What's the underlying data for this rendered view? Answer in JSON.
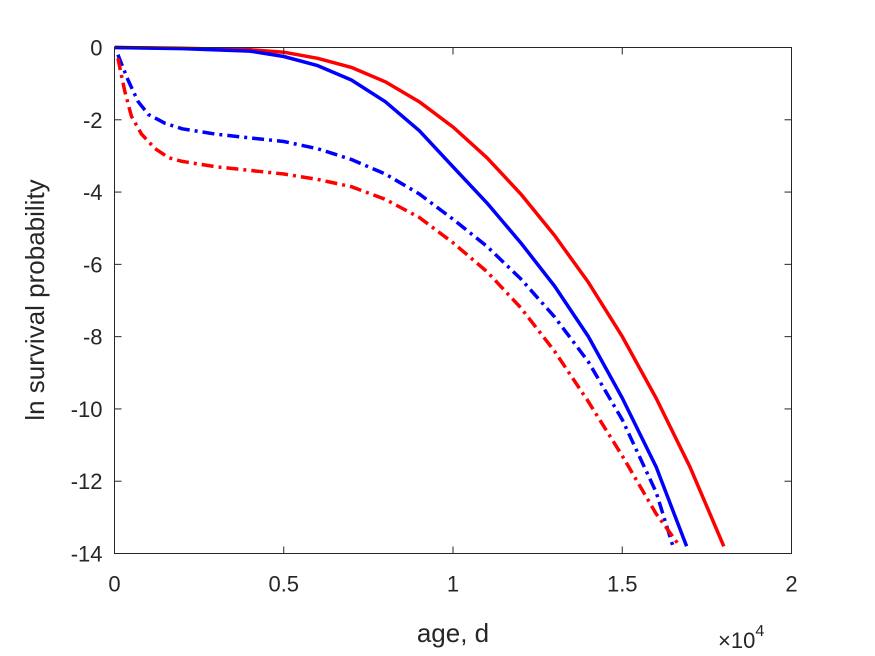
{
  "chart_data": {
    "type": "line",
    "title": "",
    "xlabel": "age, d",
    "ylabel": "ln survival probability",
    "x_multiplier_label": "×10",
    "x_multiplier_exponent": "4",
    "xlim": [
      0,
      20000
    ],
    "ylim": [
      -14,
      0
    ],
    "x_ticks": [
      0,
      5000,
      10000,
      15000,
      20000
    ],
    "x_tick_labels": [
      "0",
      "0.5",
      "1",
      "1.5",
      "2"
    ],
    "y_ticks": [
      0,
      -2,
      -4,
      -6,
      -8,
      -10,
      -12,
      -14
    ],
    "y_tick_labels": [
      "0",
      "-2",
      "-4",
      "-6",
      "-8",
      "-10",
      "-12",
      "-14"
    ],
    "grid": false,
    "legend": "none",
    "series": [
      {
        "color": "#ff0000",
        "style": "solid",
        "x": [
          0,
          2000,
          4000,
          5000,
          6000,
          7000,
          8000,
          9000,
          10000,
          11000,
          12000,
          13000,
          14000,
          15000,
          16000,
          17000,
          18000
        ],
        "y": [
          0,
          -0.02,
          -0.06,
          -0.13,
          -0.3,
          -0.55,
          -0.95,
          -1.5,
          -2.2,
          -3.05,
          -4.05,
          -5.2,
          -6.5,
          -8.0,
          -9.7,
          -11.6,
          -13.8
        ]
      },
      {
        "color": "#0000ff",
        "style": "solid",
        "x": [
          0,
          2000,
          4000,
          5000,
          6000,
          7000,
          8000,
          9000,
          10000,
          11000,
          12000,
          13000,
          14000,
          15000,
          16000,
          16900
        ],
        "y": [
          0,
          -0.03,
          -0.1,
          -0.25,
          -0.5,
          -0.9,
          -1.5,
          -2.3,
          -3.3,
          -4.3,
          -5.4,
          -6.6,
          -8.0,
          -9.7,
          -11.6,
          -13.8
        ]
      },
      {
        "color": "#0000ff",
        "style": "dashdot",
        "x": [
          100,
          400,
          700,
          1000,
          1500,
          2000,
          3000,
          4000,
          5000,
          6000,
          7000,
          8000,
          9000,
          10000,
          11000,
          12000,
          13000,
          14000,
          15000,
          16000,
          16500
        ],
        "y": [
          -0.2,
          -0.9,
          -1.5,
          -1.85,
          -2.1,
          -2.25,
          -2.4,
          -2.5,
          -2.6,
          -2.8,
          -3.1,
          -3.5,
          -4.05,
          -4.75,
          -5.5,
          -6.4,
          -7.45,
          -8.7,
          -10.3,
          -12.3,
          -13.8
        ]
      },
      {
        "color": "#ff0000",
        "style": "dashdot",
        "x": [
          100,
          300,
          500,
          800,
          1200,
          1600,
          2000,
          3000,
          4000,
          5000,
          6000,
          7000,
          8000,
          9000,
          10000,
          11000,
          12000,
          13000,
          14000,
          15000,
          16000,
          16700
        ],
        "y": [
          -0.3,
          -1.2,
          -1.9,
          -2.4,
          -2.8,
          -3.05,
          -3.15,
          -3.3,
          -3.4,
          -3.5,
          -3.65,
          -3.85,
          -4.2,
          -4.7,
          -5.4,
          -6.2,
          -7.2,
          -8.4,
          -9.8,
          -11.3,
          -12.9,
          -13.8
        ]
      }
    ]
  }
}
